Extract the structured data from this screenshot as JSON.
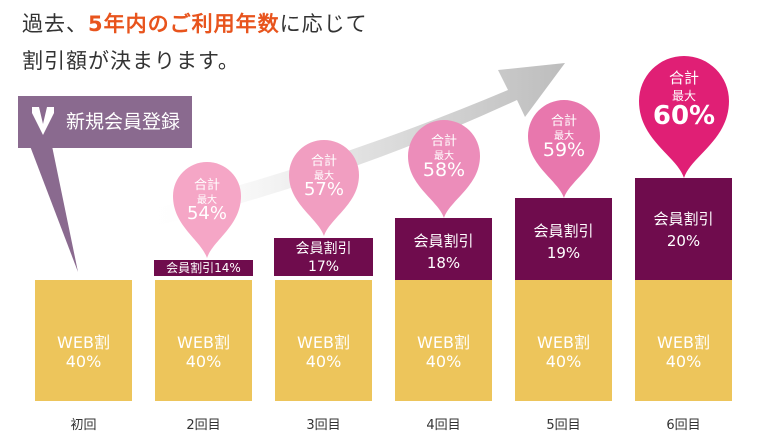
{
  "headline": {
    "line1_pre": "過去、",
    "line1_highlight": "5年内のご利用年数",
    "line1_post": "に応じて",
    "line2": "割引額が決まります。"
  },
  "new_member_badge": "新規会員登録",
  "colors": {
    "highlight": "#e8541d",
    "web_bar": "#edc55b",
    "member_bar": "#6f0c4d",
    "badge": "#8a6a8f",
    "arrow": "#cccccc",
    "pin_light": "#f5a6c6",
    "pin_mid": "#e877ad",
    "pin_strong": "#e01f75"
  },
  "columns": [
    {
      "x_label": "初回",
      "web_label": "WEB割",
      "web_rate": "40%"
    },
    {
      "x_label": "2回目",
      "web_label": "WEB割",
      "web_rate": "40%",
      "member_label": "会員割引14%",
      "total": {
        "label": "合計",
        "sub": "最大",
        "value": "54%"
      }
    },
    {
      "x_label": "3回目",
      "web_label": "WEB割",
      "web_rate": "40%",
      "member_label": "会員割引",
      "member_rate": "17%",
      "total": {
        "label": "合計",
        "sub": "最大",
        "value": "57%"
      }
    },
    {
      "x_label": "4回目",
      "web_label": "WEB割",
      "web_rate": "40%",
      "member_label": "会員割引",
      "member_rate": "18%",
      "total": {
        "label": "合計",
        "sub": "最大",
        "value": "58%"
      }
    },
    {
      "x_label": "5回目",
      "web_label": "WEB割",
      "web_rate": "40%",
      "member_label": "会員割引",
      "member_rate": "19%",
      "total": {
        "label": "合計",
        "sub": "最大",
        "value": "59%"
      }
    },
    {
      "x_label": "6回目",
      "web_label": "WEB割",
      "web_rate": "40%",
      "member_label": "会員割引",
      "member_rate": "20%",
      "total": {
        "label": "合計",
        "sub": "最大",
        "value": "60%"
      }
    }
  ]
}
